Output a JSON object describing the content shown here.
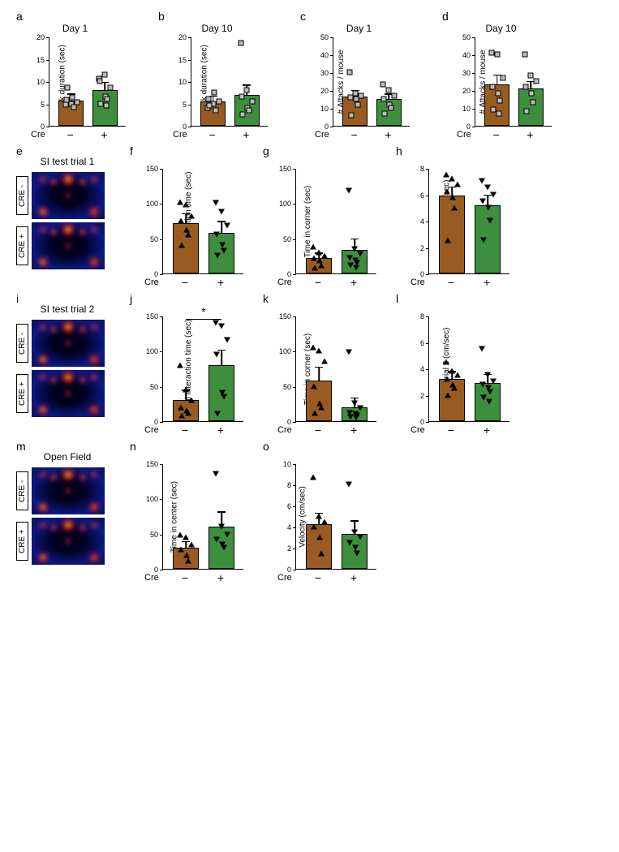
{
  "colors": {
    "minus": "#9a5b21",
    "plus": "#3d8f3d",
    "axis": "#000000",
    "point_fill": "#bfbfbf"
  },
  "x_labels": {
    "cre": "Cre",
    "minus": "−",
    "plus": "+"
  },
  "heatmap_labels": {
    "cre_minus": "CRE -",
    "cre_plus": "CRE +"
  },
  "panels": {
    "a": {
      "label": "a",
      "title": "Day 1",
      "ylabel": "Attack duration (sec)",
      "ylim": [
        0,
        20
      ],
      "yticks": [
        0,
        5,
        10,
        15,
        20
      ],
      "bars": [
        {
          "v": 5.7,
          "err": 1.3,
          "color": "#9a5b21"
        },
        {
          "v": 8.0,
          "err": 1.6,
          "color": "#3d8f3d"
        }
      ],
      "points": {
        "minus": [
          4.8,
          5.0,
          5.3,
          5.8,
          6.3,
          4.2,
          8.5
        ],
        "plus": [
          10.5,
          11.5,
          8.5,
          10.0,
          6.5,
          6.0,
          5.0,
          4.5
        ]
      },
      "marker": "square"
    },
    "b": {
      "label": "b",
      "title": "Day 10",
      "ylabel": "Attack duration (sec)",
      "ylim": [
        0,
        20
      ],
      "yticks": [
        0,
        5,
        10,
        15,
        20
      ],
      "bars": [
        {
          "v": 5.5,
          "err": 1.0,
          "color": "#9a5b21"
        },
        {
          "v": 7.0,
          "err": 2.0,
          "color": "#3d8f3d"
        }
      ],
      "points": {
        "minus": [
          4.0,
          5.0,
          5.5,
          6.0,
          7.5,
          3.5,
          4.5
        ],
        "plus": [
          18.5,
          8.0,
          5.5,
          6.5,
          4.0,
          3.5,
          2.5
        ]
      },
      "marker": "square"
    },
    "c": {
      "label": "c",
      "title": "Day 1",
      "ylabel": "# Attacks / mouse",
      "ylim": [
        0,
        50
      ],
      "yticks": [
        0,
        10,
        20,
        30,
        40,
        50
      ],
      "bars": [
        {
          "v": 16.5,
          "err": 3.0,
          "color": "#9a5b21"
        },
        {
          "v": 15.0,
          "err": 2.5,
          "color": "#3d8f3d"
        }
      ],
      "points": {
        "minus": [
          30,
          18,
          17,
          16,
          15,
          12,
          6
        ],
        "plus": [
          23,
          20,
          17,
          15,
          12,
          10,
          7
        ]
      },
      "marker": "square"
    },
    "d": {
      "label": "d",
      "title": "Day 10",
      "ylabel": "# Attacks / mouse",
      "ylim": [
        0,
        50
      ],
      "yticks": [
        0,
        10,
        20,
        30,
        40,
        50
      ],
      "bars": [
        {
          "v": 23,
          "err": 5,
          "color": "#9a5b21"
        },
        {
          "v": 21,
          "err": 3.5,
          "color": "#3d8f3d"
        }
      ],
      "points": {
        "minus": [
          41,
          40,
          27,
          22,
          18,
          14,
          9,
          7
        ],
        "plus": [
          40,
          28,
          25,
          22,
          18,
          13,
          8
        ]
      },
      "marker": "square"
    },
    "e": {
      "label": "e",
      "title": "SI test trial 1"
    },
    "f": {
      "label": "f",
      "title": "",
      "ylabel": "Social interaction time (sec)",
      "ylim": [
        0,
        150
      ],
      "yticks": [
        0,
        50,
        100,
        150
      ],
      "bars": [
        {
          "v": 72,
          "err": 12,
          "color": "#9a5b21"
        },
        {
          "v": 58,
          "err": 15,
          "color": "#3d8f3d"
        }
      ],
      "points": {
        "minus": [
          102,
          98,
          82,
          75,
          62,
          55,
          40
        ],
        "plus": [
          100,
          88,
          68,
          55,
          40,
          32,
          25
        ]
      },
      "marker": "triangle"
    },
    "g": {
      "label": "g",
      "title": "",
      "ylabel": "Time in corner (sec)",
      "ylim": [
        0,
        150
      ],
      "yticks": [
        0,
        50,
        100,
        150
      ],
      "bars": [
        {
          "v": 22,
          "err": 6,
          "color": "#9a5b21"
        },
        {
          "v": 34,
          "err": 14,
          "color": "#3d8f3d"
        }
      ],
      "points": {
        "minus": [
          38,
          30,
          25,
          22,
          18,
          12,
          8
        ],
        "plus": [
          118,
          35,
          28,
          22,
          18,
          15,
          12,
          8
        ]
      },
      "marker": "triangle"
    },
    "h": {
      "label": "h",
      "title": "",
      "ylabel": "Velocity trial 1 (cm/sec)",
      "ylim": [
        0,
        8
      ],
      "yticks": [
        0,
        2,
        4,
        6,
        8
      ],
      "bars": [
        {
          "v": 5.9,
          "err": 0.6,
          "color": "#9a5b21"
        },
        {
          "v": 5.2,
          "err": 0.7,
          "color": "#3d8f3d"
        }
      ],
      "points": {
        "minus": [
          7.5,
          7.2,
          6.8,
          6.2,
          5.8,
          5.0,
          2.5
        ],
        "plus": [
          7.0,
          6.5,
          6.0,
          5.5,
          5.0,
          4.0,
          2.5
        ]
      },
      "marker": "triangle"
    },
    "i": {
      "label": "i",
      "title": "SI test trial 2"
    },
    "j": {
      "label": "j",
      "title": "",
      "ylabel": "Social interaction time (sec)",
      "ylim": [
        0,
        150
      ],
      "yticks": [
        0,
        50,
        100,
        150
      ],
      "bars": [
        {
          "v": 30,
          "err": 13,
          "color": "#9a5b21"
        },
        {
          "v": 80,
          "err": 20,
          "color": "#3d8f3d"
        }
      ],
      "points": {
        "minus": [
          80,
          45,
          30,
          20,
          15,
          12,
          8
        ],
        "plus": [
          140,
          135,
          115,
          95,
          40,
          35,
          10
        ]
      },
      "marker": "triangle",
      "sig": "*"
    },
    "k": {
      "label": "k",
      "title": "",
      "ylabel": "Time in corner (sec)",
      "ylim": [
        0,
        150
      ],
      "yticks": [
        0,
        50,
        100,
        150
      ],
      "bars": [
        {
          "v": 58,
          "err": 18,
          "color": "#9a5b21"
        },
        {
          "v": 20,
          "err": 12,
          "color": "#3d8f3d"
        }
      ],
      "points": {
        "minus": [
          105,
          100,
          85,
          50,
          25,
          20,
          12
        ],
        "plus": [
          98,
          25,
          18,
          12,
          10,
          8,
          6,
          5
        ]
      },
      "marker": "triangle"
    },
    "l": {
      "label": "l",
      "title": "",
      "ylabel": "Velocity trial 2 (cm/sec)",
      "ylim": [
        0,
        8
      ],
      "yticks": [
        0,
        2,
        4,
        6,
        8
      ],
      "bars": [
        {
          "v": 3.2,
          "err": 0.5,
          "color": "#9a5b21"
        },
        {
          "v": 2.9,
          "err": 0.6,
          "color": "#3d8f3d"
        }
      ],
      "points": {
        "minus": [
          4.5,
          3.8,
          3.5,
          3.2,
          2.8,
          2.5,
          2.0
        ],
        "plus": [
          5.5,
          3.5,
          3.0,
          2.8,
          2.5,
          2.2,
          1.8,
          1.5
        ]
      },
      "marker": "triangle"
    },
    "m": {
      "label": "m",
      "title": "Open Field"
    },
    "n": {
      "label": "n",
      "title": "",
      "ylabel": "Time in center (sec)",
      "ylim": [
        0,
        150
      ],
      "yticks": [
        0,
        50,
        100,
        150
      ],
      "bars": [
        {
          "v": 30,
          "err": 8,
          "color": "#9a5b21"
        },
        {
          "v": 60,
          "err": 20,
          "color": "#3d8f3d"
        }
      ],
      "points": {
        "minus": [
          48,
          45,
          35,
          28,
          20,
          12
        ],
        "plus": [
          135,
          60,
          48,
          42,
          35,
          30
        ]
      },
      "marker": "triangle"
    },
    "o": {
      "label": "o",
      "title": "",
      "ylabel": "Velocity (cm/sec)",
      "ylim": [
        0,
        10
      ],
      "yticks": [
        0,
        2,
        4,
        6,
        8,
        10
      ],
      "bars": [
        {
          "v": 4.2,
          "err": 1.0,
          "color": "#9a5b21"
        },
        {
          "v": 3.3,
          "err": 1.2,
          "color": "#3d8f3d"
        }
      ],
      "points": {
        "minus": [
          8.7,
          5.0,
          4.5,
          4.0,
          3.0,
          1.5
        ],
        "plus": [
          8.0,
          3.5,
          3.0,
          2.5,
          2.0,
          1.5
        ]
      },
      "marker": "triangle"
    }
  }
}
